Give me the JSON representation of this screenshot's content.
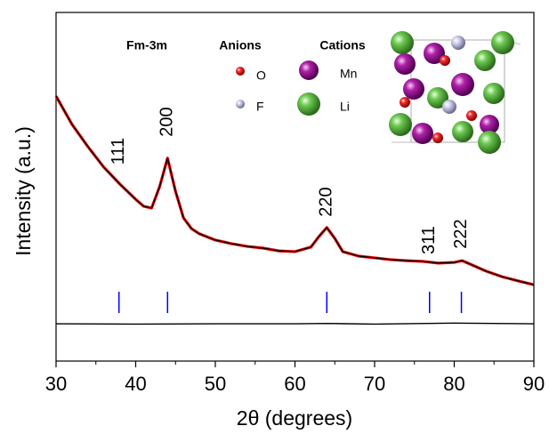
{
  "chart_data": {
    "type": "line",
    "xlabel": "2θ (degrees)",
    "ylabel": "Intensity (a.u.)",
    "xlim": [
      30,
      90
    ],
    "xticks": [
      30,
      40,
      50,
      60,
      70,
      80,
      90
    ],
    "xminorticks": [
      35,
      45,
      55,
      65,
      75,
      85
    ],
    "ylim": [
      0,
      100
    ],
    "x": [
      30,
      32,
      34,
      36,
      38,
      40,
      41,
      42,
      43,
      44,
      45,
      46,
      47,
      48,
      50,
      52,
      54,
      56,
      58,
      60,
      62,
      63,
      64,
      65,
      66,
      68,
      70,
      72,
      74,
      76,
      78,
      80,
      81,
      82,
      84,
      86,
      88,
      90
    ],
    "series": [
      {
        "color": "#ff0000",
        "values": [
          76.0,
          67.9,
          61.5,
          55.6,
          50.8,
          46.4,
          44.4,
          43.9,
          50.0,
          58.2,
          48.7,
          41.1,
          38.0,
          36.5,
          34.7,
          33.7,
          32.9,
          32.4,
          31.6,
          31.4,
          32.7,
          35.7,
          38.3,
          35.2,
          31.4,
          30.1,
          29.6,
          29.1,
          28.8,
          28.6,
          28.1,
          28.3,
          28.8,
          27.8,
          25.8,
          24.2,
          23.0,
          21.9
        ]
      },
      {
        "color": "#000000",
        "values": [
          76.0,
          67.9,
          61.5,
          55.6,
          50.8,
          46.4,
          44.4,
          43.9,
          50.0,
          58.2,
          48.7,
          41.1,
          38.0,
          36.5,
          34.7,
          33.7,
          32.9,
          32.4,
          31.6,
          31.4,
          32.7,
          35.7,
          38.3,
          35.2,
          31.4,
          30.1,
          29.6,
          29.1,
          28.8,
          28.6,
          28.1,
          28.3,
          28.8,
          27.8,
          25.8,
          24.2,
          23.0,
          21.9
        ]
      },
      {
        "color": "#000000",
        "x": [
          30,
          40,
          50,
          60,
          64,
          70,
          80,
          90
        ],
        "values": [
          10.7,
          10.6,
          10.7,
          10.7,
          10.8,
          10.6,
          10.9,
          10.7
        ]
      }
    ],
    "reflections": {
      "color": "#0000ff",
      "positions": [
        37.9,
        44.0,
        64.0,
        76.9,
        80.9
      ],
      "labels": [
        "111",
        "200",
        "220",
        "311",
        "222"
      ]
    },
    "legend": {
      "space_group": "Fm-3m",
      "anions_title": "Anions",
      "anions": [
        "O",
        "F"
      ],
      "cations_title": "Cations",
      "cations": [
        "Mn",
        "Li"
      ]
    }
  }
}
